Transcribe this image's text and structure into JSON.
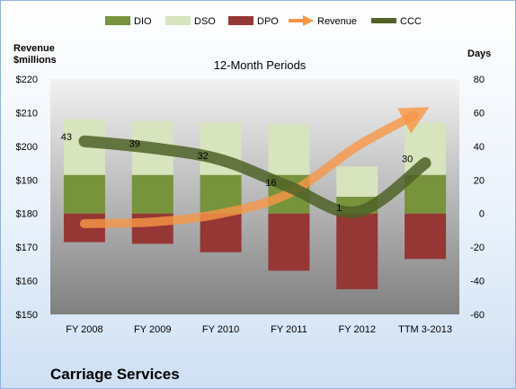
{
  "chart_data": {
    "type": "bar",
    "title": "12-Month Periods",
    "company": "Carriage Services",
    "categories": [
      "FY 2008",
      "FY 2009",
      "FY 2010",
      "FY 2011",
      "FY 2012",
      "TTM 3-2013"
    ],
    "left_axis": {
      "label_lines": [
        "Revenue",
        "$millions"
      ],
      "ylim": [
        150,
        220
      ],
      "ticks": [
        "$150",
        "$160",
        "$170",
        "$180",
        "$190",
        "$200",
        "$210",
        "$220"
      ]
    },
    "right_axis": {
      "label": "Days",
      "ylim": [
        -60,
        80
      ],
      "ticks": [
        "-60",
        "-40",
        "-20",
        "0",
        "20",
        "40",
        "60",
        "80"
      ]
    },
    "series": [
      {
        "name": "DIO",
        "axis": "right",
        "kind": "stacked-bar",
        "values": [
          23,
          23,
          23,
          23,
          10,
          23
        ]
      },
      {
        "name": "DSO",
        "axis": "right",
        "kind": "stacked-bar",
        "values": [
          33,
          32,
          31,
          30,
          18,
          31
        ]
      },
      {
        "name": "DPO",
        "axis": "right",
        "kind": "negative-bar",
        "values": [
          -17,
          -18,
          -23,
          -34,
          -45,
          -27
        ]
      },
      {
        "name": "Revenue",
        "axis": "left",
        "kind": "arrow-line",
        "values": [
          177,
          177.5,
          180,
          186,
          200,
          211
        ]
      },
      {
        "name": "CCC",
        "axis": "right",
        "kind": "line",
        "values": [
          43,
          39,
          32,
          16,
          1,
          30
        ]
      }
    ],
    "data_labels": [
      "43",
      "39",
      "32",
      "16",
      "1",
      "30"
    ],
    "legend_position": "top",
    "grid": false,
    "colors": {
      "DIO": "#77933c",
      "DSO": "#d7e4bd",
      "DPO": "#953735",
      "Revenue": "#f79646",
      "CCC": "#4f6228",
      "plot_top": "#f2f2f2",
      "plot_bottom": "#808080"
    }
  }
}
